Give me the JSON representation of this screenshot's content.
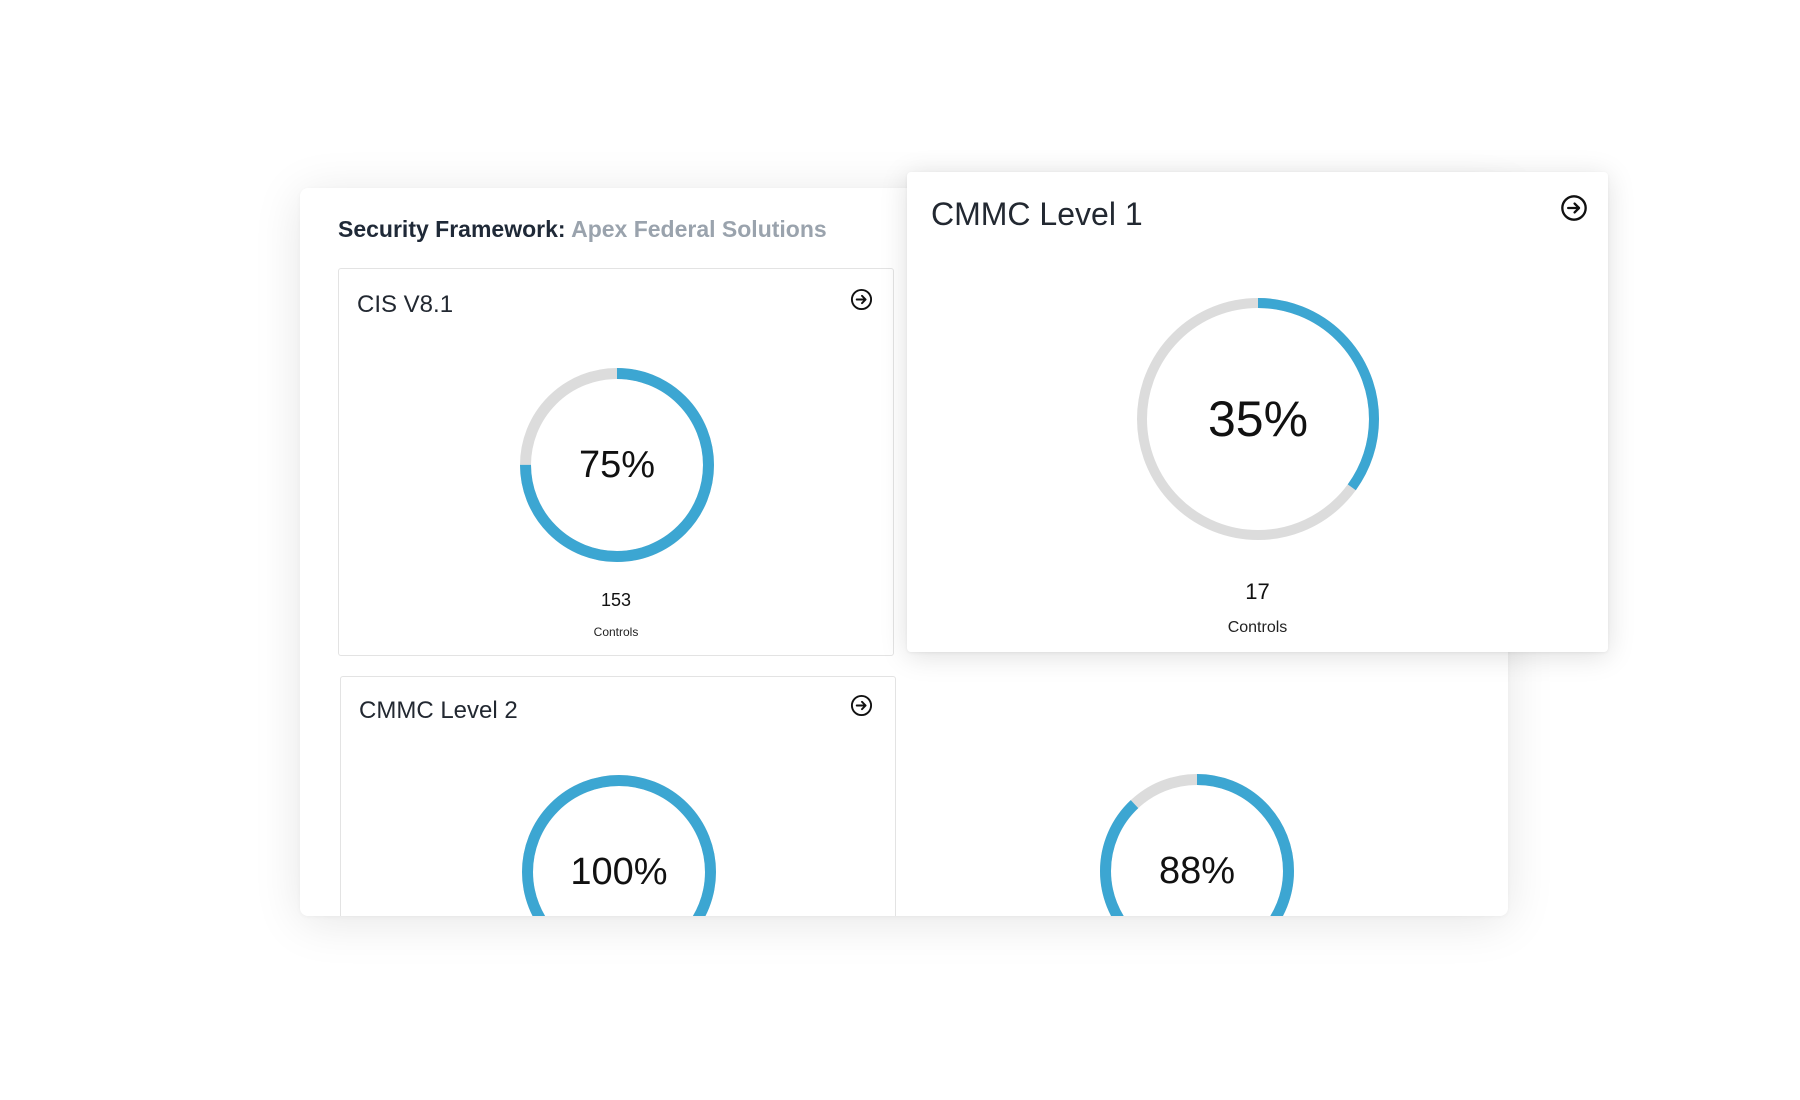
{
  "header": {
    "label": "Security Framework:",
    "organization": "Apex Federal Solutions"
  },
  "colors": {
    "progress": "#3ca6d2",
    "track": "#dcdcdc"
  },
  "cards": [
    {
      "id": "cis",
      "title": "CIS V8.1",
      "percent_label": "75%",
      "progress": 0.75,
      "count": "153",
      "count_label": "Controls"
    },
    {
      "id": "cmmc1",
      "title": "CMMC Level 1",
      "percent_label": "35%",
      "progress": 0.35,
      "count": "17",
      "count_label": "Controls"
    },
    {
      "id": "cmmc2",
      "title": "CMMC Level 2",
      "percent_label": "100%",
      "progress": 1.0
    },
    {
      "id": "fourth",
      "percent_label": "88%",
      "progress": 0.88
    }
  ]
}
